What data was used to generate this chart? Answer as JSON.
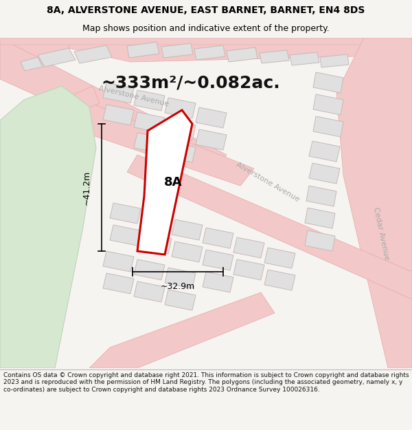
{
  "title_line1": "8A, ALVERSTONE AVENUE, EAST BARNET, BARNET, EN4 8DS",
  "title_line2": "Map shows position and indicative extent of the property.",
  "area_text": "~333m²/~0.082ac.",
  "label_8A": "8A",
  "dim_height": "~41.2m",
  "dim_width": "~32.9m",
  "footer_text": "Contains OS data © Crown copyright and database right 2021. This information is subject to Crown copyright and database rights 2023 and is reproduced with the permission of HM Land Registry. The polygons (including the associated geometry, namely x, y co-ordinates) are subject to Crown copyright and database rights 2023 Ordnance Survey 100026316.",
  "bg_color": "#f5f4f1",
  "map_bg": "#f8f8f8",
  "road_color": "#f2c8c8",
  "road_outline": "#e8a8a8",
  "plot_fill": "#e0e0e0",
  "plot_outline": "#c8b8b8",
  "highlight_color": "#cc0000",
  "green_fill": "#d6e8d0",
  "green_outline": "#c0d4ba",
  "street_label_color": "#aaaaaa",
  "dim_color": "#000000",
  "title_color": "#000000",
  "footer_color": "#111111",
  "title_fontsize": 10,
  "subtitle_fontsize": 9,
  "area_fontsize": 18,
  "label_fontsize": 13,
  "dim_fontsize": 9,
  "street_fontsize": 8,
  "footer_fontsize": 6.5
}
